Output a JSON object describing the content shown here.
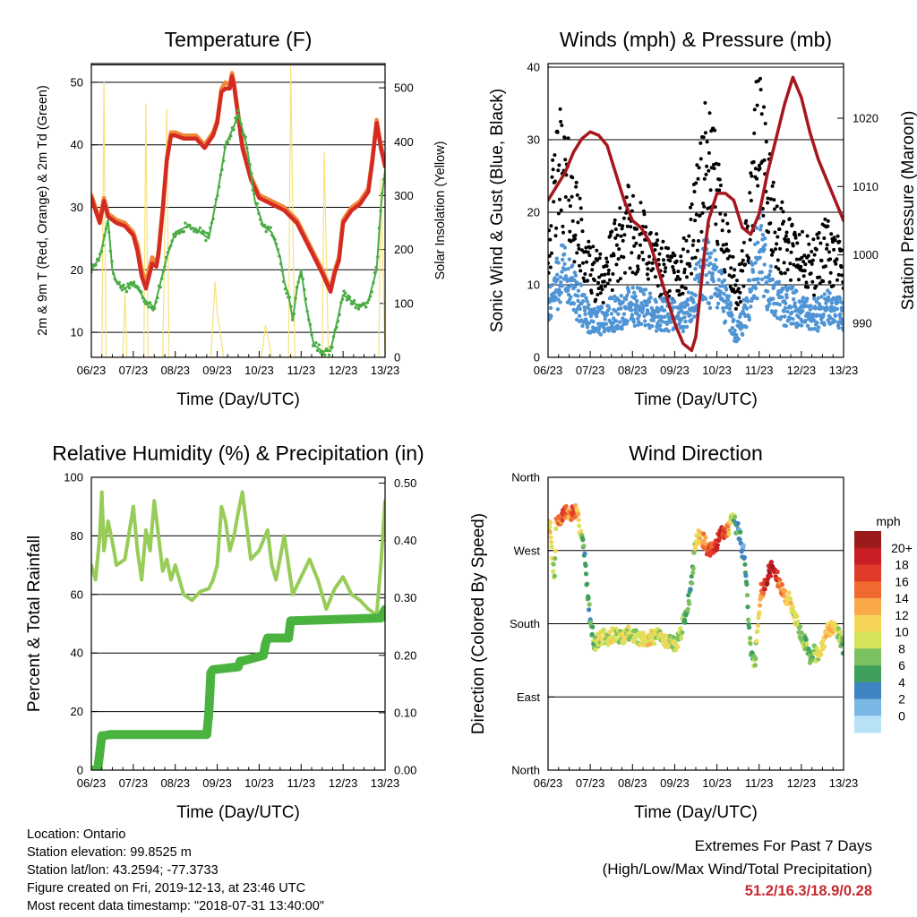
{
  "colors": {
    "red": "#d42a22",
    "orange": "#f0883a",
    "green": "#4aac45",
    "yellow": "#f7e27a",
    "black": "#000000",
    "blue": "#4f94d4",
    "maroon": "#a5171d",
    "rh": "#98cc58",
    "precip": "#4ab33f"
  },
  "chart_data": [
    {
      "id": "temperature",
      "type": "line",
      "title": "Temperature (F)",
      "xlabel": "Time (Day/UTC)",
      "ylabel": "2m & 9m T (Red, Orange) & 2m Td (Green)",
      "y2label": "Solar Insolation (Yellow)",
      "xticks": [
        "06/23",
        "07/23",
        "08/23",
        "09/23",
        "10/23",
        "11/23",
        "12/23",
        "13/23"
      ],
      "xlim": [
        6,
        13
      ],
      "ylim": [
        6,
        53
      ],
      "yticks": [
        10,
        20,
        30,
        40,
        50
      ],
      "y2lim": [
        0,
        545
      ],
      "y2ticks": [
        0,
        100,
        200,
        300,
        400,
        500
      ],
      "grid": true,
      "series": [
        {
          "color_key": "orange",
          "x": [
            6.0,
            6.1,
            6.2,
            6.3,
            6.4,
            6.6,
            6.8,
            7.0,
            7.1,
            7.2,
            7.3,
            7.45,
            7.55,
            7.6,
            7.7,
            7.8,
            7.9,
            8.0,
            8.2,
            8.5,
            8.7,
            8.9,
            9.0,
            9.1,
            9.2,
            9.3,
            9.35,
            9.4,
            9.5,
            9.6,
            9.8,
            10.0,
            10.3,
            10.6,
            10.9,
            11.2,
            11.5,
            11.7,
            11.8,
            11.9,
            12.0,
            12.2,
            12.4,
            12.6,
            12.7,
            12.8,
            12.9,
            13.0
          ],
          "y": [
            32,
            30,
            28,
            31.5,
            29,
            28,
            27.5,
            26,
            24,
            20,
            18,
            22,
            21,
            23,
            30,
            38,
            42,
            42,
            41.5,
            41.5,
            40,
            42,
            44,
            49,
            50,
            49.5,
            51.5,
            50,
            45,
            40,
            35,
            32,
            31,
            30,
            28,
            24,
            20,
            17,
            20,
            22,
            28,
            30,
            31,
            33,
            38,
            44,
            40,
            37
          ]
        },
        {
          "color_key": "red",
          "x": [
            6.0,
            6.1,
            6.2,
            6.3,
            6.4,
            6.6,
            6.8,
            7.0,
            7.1,
            7.2,
            7.3,
            7.45,
            7.55,
            7.6,
            7.7,
            7.8,
            7.9,
            8.0,
            8.2,
            8.5,
            8.7,
            8.9,
            9.0,
            9.1,
            9.2,
            9.3,
            9.35,
            9.4,
            9.5,
            9.6,
            9.8,
            10.0,
            10.3,
            10.6,
            10.9,
            11.2,
            11.5,
            11.7,
            11.8,
            11.9,
            12.0,
            12.2,
            12.4,
            12.6,
            12.7,
            12.8,
            12.9,
            13.0
          ],
          "y": [
            31.5,
            29.5,
            27.5,
            31,
            28.5,
            27.5,
            27,
            25.5,
            23,
            19,
            17,
            21,
            20.5,
            22.5,
            29.5,
            37.5,
            41.5,
            41.5,
            41,
            41,
            39.5,
            41.5,
            43.5,
            48.5,
            49,
            49,
            51,
            49.5,
            44.5,
            39.5,
            34.5,
            31.5,
            30.5,
            29.5,
            27.5,
            23.5,
            19.5,
            16.5,
            19.5,
            21.5,
            27.5,
            29.5,
            30.5,
            32.5,
            37.5,
            43.5,
            39.5,
            36.5
          ]
        },
        {
          "color_key": "green",
          "x": [
            6.0,
            6.2,
            6.4,
            6.5,
            6.6,
            6.8,
            7.0,
            7.2,
            7.3,
            7.5,
            7.8,
            8.0,
            8.3,
            8.6,
            8.8,
            9.0,
            9.2,
            9.4,
            9.5,
            9.7,
            9.9,
            10.1,
            10.3,
            10.5,
            10.6,
            10.7,
            10.8,
            10.9,
            11.0,
            11.1,
            11.3,
            11.5,
            11.7,
            12.0,
            12.2,
            12.4,
            12.6,
            12.8,
            12.9,
            13.0
          ],
          "y": [
            20,
            22,
            28,
            20,
            18,
            17,
            18,
            16,
            15,
            14,
            22,
            26,
            27,
            26,
            25,
            32,
            40,
            43,
            45,
            40,
            31,
            27,
            26,
            22,
            18,
            16,
            12,
            17,
            20,
            15,
            8,
            7,
            7,
            16,
            15,
            14,
            15,
            20,
            30,
            36
          ]
        }
      ],
      "solar": {
        "color_key": "yellow",
        "x": [
          6.0,
          6.1,
          6.25,
          6.3,
          6.35,
          6.45,
          6.6,
          6.75,
          6.8,
          6.85,
          6.95,
          7.25,
          7.3,
          7.35,
          7.45,
          7.7,
          7.8,
          7.85,
          7.95,
          8.85,
          8.95,
          9.0,
          9.05,
          9.15,
          9.35,
          9.45,
          9.6,
          10.05,
          10.15,
          10.2,
          10.3,
          10.4,
          10.6,
          10.7,
          10.75,
          10.85,
          11.0,
          11.2,
          11.4,
          11.5,
          11.55,
          11.65,
          11.75,
          11.85,
          12.55,
          12.6,
          12.7,
          12.85,
          12.9,
          13.0
        ],
        "y": [
          0,
          0,
          0,
          510,
          0,
          0,
          0,
          0,
          120,
          0,
          0,
          0,
          470,
          0,
          0,
          0,
          460,
          0,
          0,
          0,
          140,
          80,
          60,
          0,
          0,
          0,
          0,
          0,
          60,
          40,
          0,
          0,
          0,
          0,
          540,
          0,
          0,
          0,
          0,
          0,
          380,
          0,
          0,
          0,
          0,
          0,
          0,
          0,
          330,
          0
        ]
      }
    },
    {
      "id": "winds",
      "type": "scatter",
      "title": "Winds (mph) & Pressure (mb)",
      "xlabel": "Time (Day/UTC)",
      "ylabel": "Sonic Wind & Gust (Blue, Black)",
      "y2label": "Station Pressure (Maroon)",
      "xticks": [
        "06/23",
        "07/23",
        "08/23",
        "09/23",
        "10/23",
        "11/23",
        "12/23",
        "13/23"
      ],
      "xlim": [
        6,
        13
      ],
      "ylim": [
        0,
        40.5
      ],
      "yticks": [
        0,
        10,
        20,
        30,
        40
      ],
      "y2lim": [
        985,
        1028
      ],
      "y2ticks": [
        990,
        1000,
        1010,
        1020
      ],
      "grid": true,
      "gust": {
        "color_key": "black",
        "x": [
          6.0,
          6.15,
          6.3,
          6.5,
          6.7,
          6.9,
          7.1,
          7.3,
          7.5,
          7.7,
          7.9,
          8.1,
          8.3,
          8.5,
          8.7,
          8.9,
          9.1,
          9.3,
          9.5,
          9.7,
          9.9,
          10.1,
          10.3,
          10.45,
          10.6,
          10.75,
          10.9,
          11.05,
          11.2,
          11.4,
          11.6,
          11.8,
          12.0,
          12.2,
          12.4,
          12.6,
          12.8,
          13.0
        ],
        "y": [
          14,
          20,
          24,
          20,
          16,
          12,
          10,
          10,
          12,
          14,
          16,
          15,
          14,
          12,
          11,
          10,
          10,
          12,
          18,
          24,
          22,
          18,
          12,
          7,
          10,
          16,
          25,
          28,
          20,
          16,
          14,
          13,
          12,
          11,
          12,
          13,
          12,
          11
        ]
      },
      "wind": {
        "color_key": "blue",
        "x": [
          6.0,
          6.15,
          6.3,
          6.5,
          6.7,
          6.9,
          7.1,
          7.3,
          7.5,
          7.7,
          7.9,
          8.1,
          8.3,
          8.5,
          8.7,
          8.9,
          9.1,
          9.3,
          9.5,
          9.7,
          9.9,
          10.1,
          10.3,
          10.45,
          10.6,
          10.75,
          10.9,
          11.05,
          11.2,
          11.4,
          11.6,
          11.8,
          12.0,
          12.2,
          12.4,
          12.6,
          12.8,
          13.0
        ],
        "y": [
          7,
          9,
          12,
          10,
          8,
          6,
          5,
          5,
          6,
          6,
          7,
          7,
          7,
          6,
          6,
          6,
          5,
          6,
          9,
          12,
          11,
          9,
          6,
          3,
          5,
          8,
          12,
          15,
          10,
          8,
          7,
          7,
          6,
          6,
          6,
          7,
          6,
          6
        ]
      },
      "pressure": {
        "color_key": "maroon",
        "x": [
          6.0,
          6.2,
          6.4,
          6.6,
          6.8,
          7.0,
          7.2,
          7.4,
          7.6,
          7.8,
          8.0,
          8.2,
          8.4,
          8.6,
          8.8,
          9.0,
          9.2,
          9.4,
          9.5,
          9.6,
          9.7,
          9.8,
          10.0,
          10.2,
          10.4,
          10.6,
          10.8,
          11.0,
          11.2,
          11.4,
          11.6,
          11.8,
          12.0,
          12.2,
          12.4,
          12.6,
          12.8,
          13.0
        ],
        "y": [
          1008,
          1010,
          1012,
          1015,
          1017,
          1018,
          1017.5,
          1016,
          1012,
          1008,
          1005,
          1004,
          1002,
          998,
          994,
          990,
          987,
          986,
          988,
          994,
          1000,
          1005,
          1009,
          1009,
          1008,
          1004,
          1003,
          1006,
          1012,
          1017,
          1022,
          1026,
          1023,
          1018,
          1014,
          1011,
          1008,
          1005
        ]
      }
    },
    {
      "id": "humidity",
      "type": "line",
      "title": "Relative Humidity (%) & Precipitation (in)",
      "xlabel": "Time (Day/UTC)",
      "ylabel": "Percent & Total Rainfall",
      "xticks": [
        "06/23",
        "07/23",
        "08/23",
        "09/23",
        "10/23",
        "11/23",
        "12/23",
        "13/23"
      ],
      "xlim": [
        6,
        13
      ],
      "ylim": [
        0,
        100
      ],
      "yticks": [
        0,
        20,
        40,
        60,
        80,
        100
      ],
      "y2lim": [
        0,
        0.51
      ],
      "y2ticks": [
        "0.00",
        "0.10",
        "0.20",
        "0.30",
        "0.40",
        "0.50"
      ],
      "grid": true,
      "rh": {
        "color_key": "rh",
        "x": [
          6.0,
          6.1,
          6.2,
          6.25,
          6.3,
          6.4,
          6.5,
          6.6,
          6.8,
          7.0,
          7.1,
          7.2,
          7.3,
          7.4,
          7.5,
          7.7,
          7.8,
          7.9,
          8.0,
          8.2,
          8.4,
          8.6,
          8.8,
          8.9,
          9.0,
          9.1,
          9.2,
          9.3,
          9.4,
          9.5,
          9.6,
          9.8,
          10.0,
          10.2,
          10.3,
          10.4,
          10.6,
          10.8,
          11.0,
          11.2,
          11.4,
          11.6,
          11.8,
          12.0,
          12.2,
          12.4,
          12.6,
          12.8,
          12.9,
          13.0
        ],
        "y": [
          70,
          65,
          80,
          95,
          75,
          85,
          78,
          70,
          72,
          90,
          75,
          65,
          82,
          75,
          92,
          68,
          72,
          65,
          70,
          60,
          58,
          61,
          62,
          65,
          70,
          90,
          85,
          75,
          80,
          88,
          95,
          72,
          75,
          82,
          70,
          65,
          80,
          60,
          66,
          72,
          65,
          55,
          62,
          66,
          60,
          58,
          55,
          53,
          70,
          92
        ]
      },
      "precip": {
        "color_key": "precip",
        "x": [
          6.0,
          6.15,
          6.2,
          6.25,
          6.3,
          6.45,
          8.75,
          8.8,
          8.85,
          8.9,
          9.5,
          9.55,
          9.6,
          10.1,
          10.15,
          10.2,
          10.7,
          10.75,
          10.8,
          12.9,
          13.0
        ],
        "y": [
          0.0,
          0.0,
          0.03,
          0.06,
          0.06,
          0.062,
          0.062,
          0.1,
          0.17,
          0.175,
          0.18,
          0.19,
          0.19,
          0.2,
          0.22,
          0.23,
          0.23,
          0.26,
          0.26,
          0.265,
          0.28
        ]
      }
    },
    {
      "id": "direction",
      "type": "scatter",
      "title": "Wind Direction",
      "xlabel": "Time (Day/UTC)",
      "ylabel": "Direction (Colored By Speed)",
      "xticks": [
        "06/23",
        "07/23",
        "08/23",
        "09/23",
        "10/23",
        "11/23",
        "12/23",
        "13/23"
      ],
      "xlim": [
        6,
        13
      ],
      "ylim": [
        0,
        360
      ],
      "yticks": [
        "North",
        "East",
        "South",
        "West",
        "North"
      ],
      "grid": true,
      "legend_title": "mph",
      "legend_labels": [
        "20+",
        "18",
        "16",
        "14",
        "12",
        "10",
        "8",
        "6",
        "4",
        "2",
        "0"
      ],
      "legend_colors": [
        "#9b1a1a",
        "#c81e24",
        "#e03a28",
        "#f06a30",
        "#f9a84a",
        "#f6d45a",
        "#d6e25a",
        "#7cc160",
        "#3fa05d",
        "#3f84c2",
        "#79b7e5",
        "#b8e2f8"
      ],
      "x": [
        6.0,
        6.05,
        6.1,
        6.15,
        6.2,
        6.25,
        6.3,
        6.35,
        6.4,
        6.45,
        6.5,
        6.55,
        6.6,
        6.65,
        6.7,
        6.75,
        6.8,
        6.85,
        6.9,
        6.95,
        7.0,
        7.1,
        7.2,
        7.3,
        7.4,
        7.5,
        7.6,
        7.7,
        7.8,
        7.9,
        8.0,
        8.2,
        8.4,
        8.6,
        8.8,
        9.0,
        9.1,
        9.2,
        9.3,
        9.4,
        9.5,
        9.6,
        9.7,
        9.8,
        9.9,
        10.0,
        10.1,
        10.2,
        10.3,
        10.4,
        10.45,
        10.5,
        10.55,
        10.6,
        10.65,
        10.7,
        10.75,
        10.8,
        10.85,
        10.9,
        10.95,
        11.0,
        11.05,
        11.1,
        11.2,
        11.3,
        11.4,
        11.5,
        11.6,
        11.7,
        11.8,
        11.9,
        12.0,
        12.1,
        12.2,
        12.3,
        12.4,
        12.5,
        12.6,
        12.7,
        12.8,
        12.9,
        13.0
      ],
      "y": [
        305,
        300,
        260,
        240,
        310,
        305,
        308,
        315,
        318,
        315,
        312,
        315,
        320,
        318,
        310,
        300,
        290,
        270,
        240,
        210,
        185,
        155,
        160,
        165,
        160,
        165,
        168,
        162,
        165,
        170,
        165,
        160,
        162,
        165,
        160,
        155,
        160,
        180,
        200,
        230,
        285,
        290,
        280,
        270,
        270,
        280,
        290,
        295,
        300,
        310,
        300,
        295,
        290,
        265,
        270,
        230,
        180,
        150,
        140,
        130,
        170,
        200,
        225,
        220,
        240,
        250,
        240,
        225,
        215,
        210,
        200,
        180,
        165,
        155,
        140,
        145,
        140,
        150,
        170,
        175,
        180,
        165,
        150
      ],
      "speed": [
        10,
        11,
        8,
        6,
        12,
        13,
        14,
        16,
        15,
        13,
        12,
        14,
        15,
        13,
        11,
        9,
        7,
        5,
        4,
        4,
        4,
        6,
        8,
        9,
        7,
        10,
        8,
        7,
        9,
        8,
        7,
        9,
        10,
        8,
        9,
        7,
        8,
        6,
        5,
        4,
        9,
        11,
        13,
        15,
        16,
        17,
        18,
        15,
        10,
        6,
        4,
        3,
        2,
        3,
        2,
        4,
        5,
        6,
        5,
        7,
        8,
        10,
        14,
        15,
        18,
        19,
        17,
        14,
        12,
        10,
        9,
        8,
        7,
        6,
        5,
        7,
        8,
        9,
        10,
        11,
        9,
        7,
        6
      ]
    }
  ],
  "info": {
    "location": "Location: Ontario",
    "elevation": "Station elevation: 99.8525 m",
    "latlon": "Station lat/lon: 43.2594; -77.3733",
    "created": "Figure created on Fri, 2019-12-13, at 23:46 UTC",
    "recent": "Most recent data timestamp: \"2018-07-31 13:40:00\""
  },
  "extremes": {
    "title": "Extremes For Past 7 Days",
    "subtitle": "(High/Low/Max Wind/Total Precipitation)",
    "values": "51.2/16.3/18.9/0.28"
  }
}
